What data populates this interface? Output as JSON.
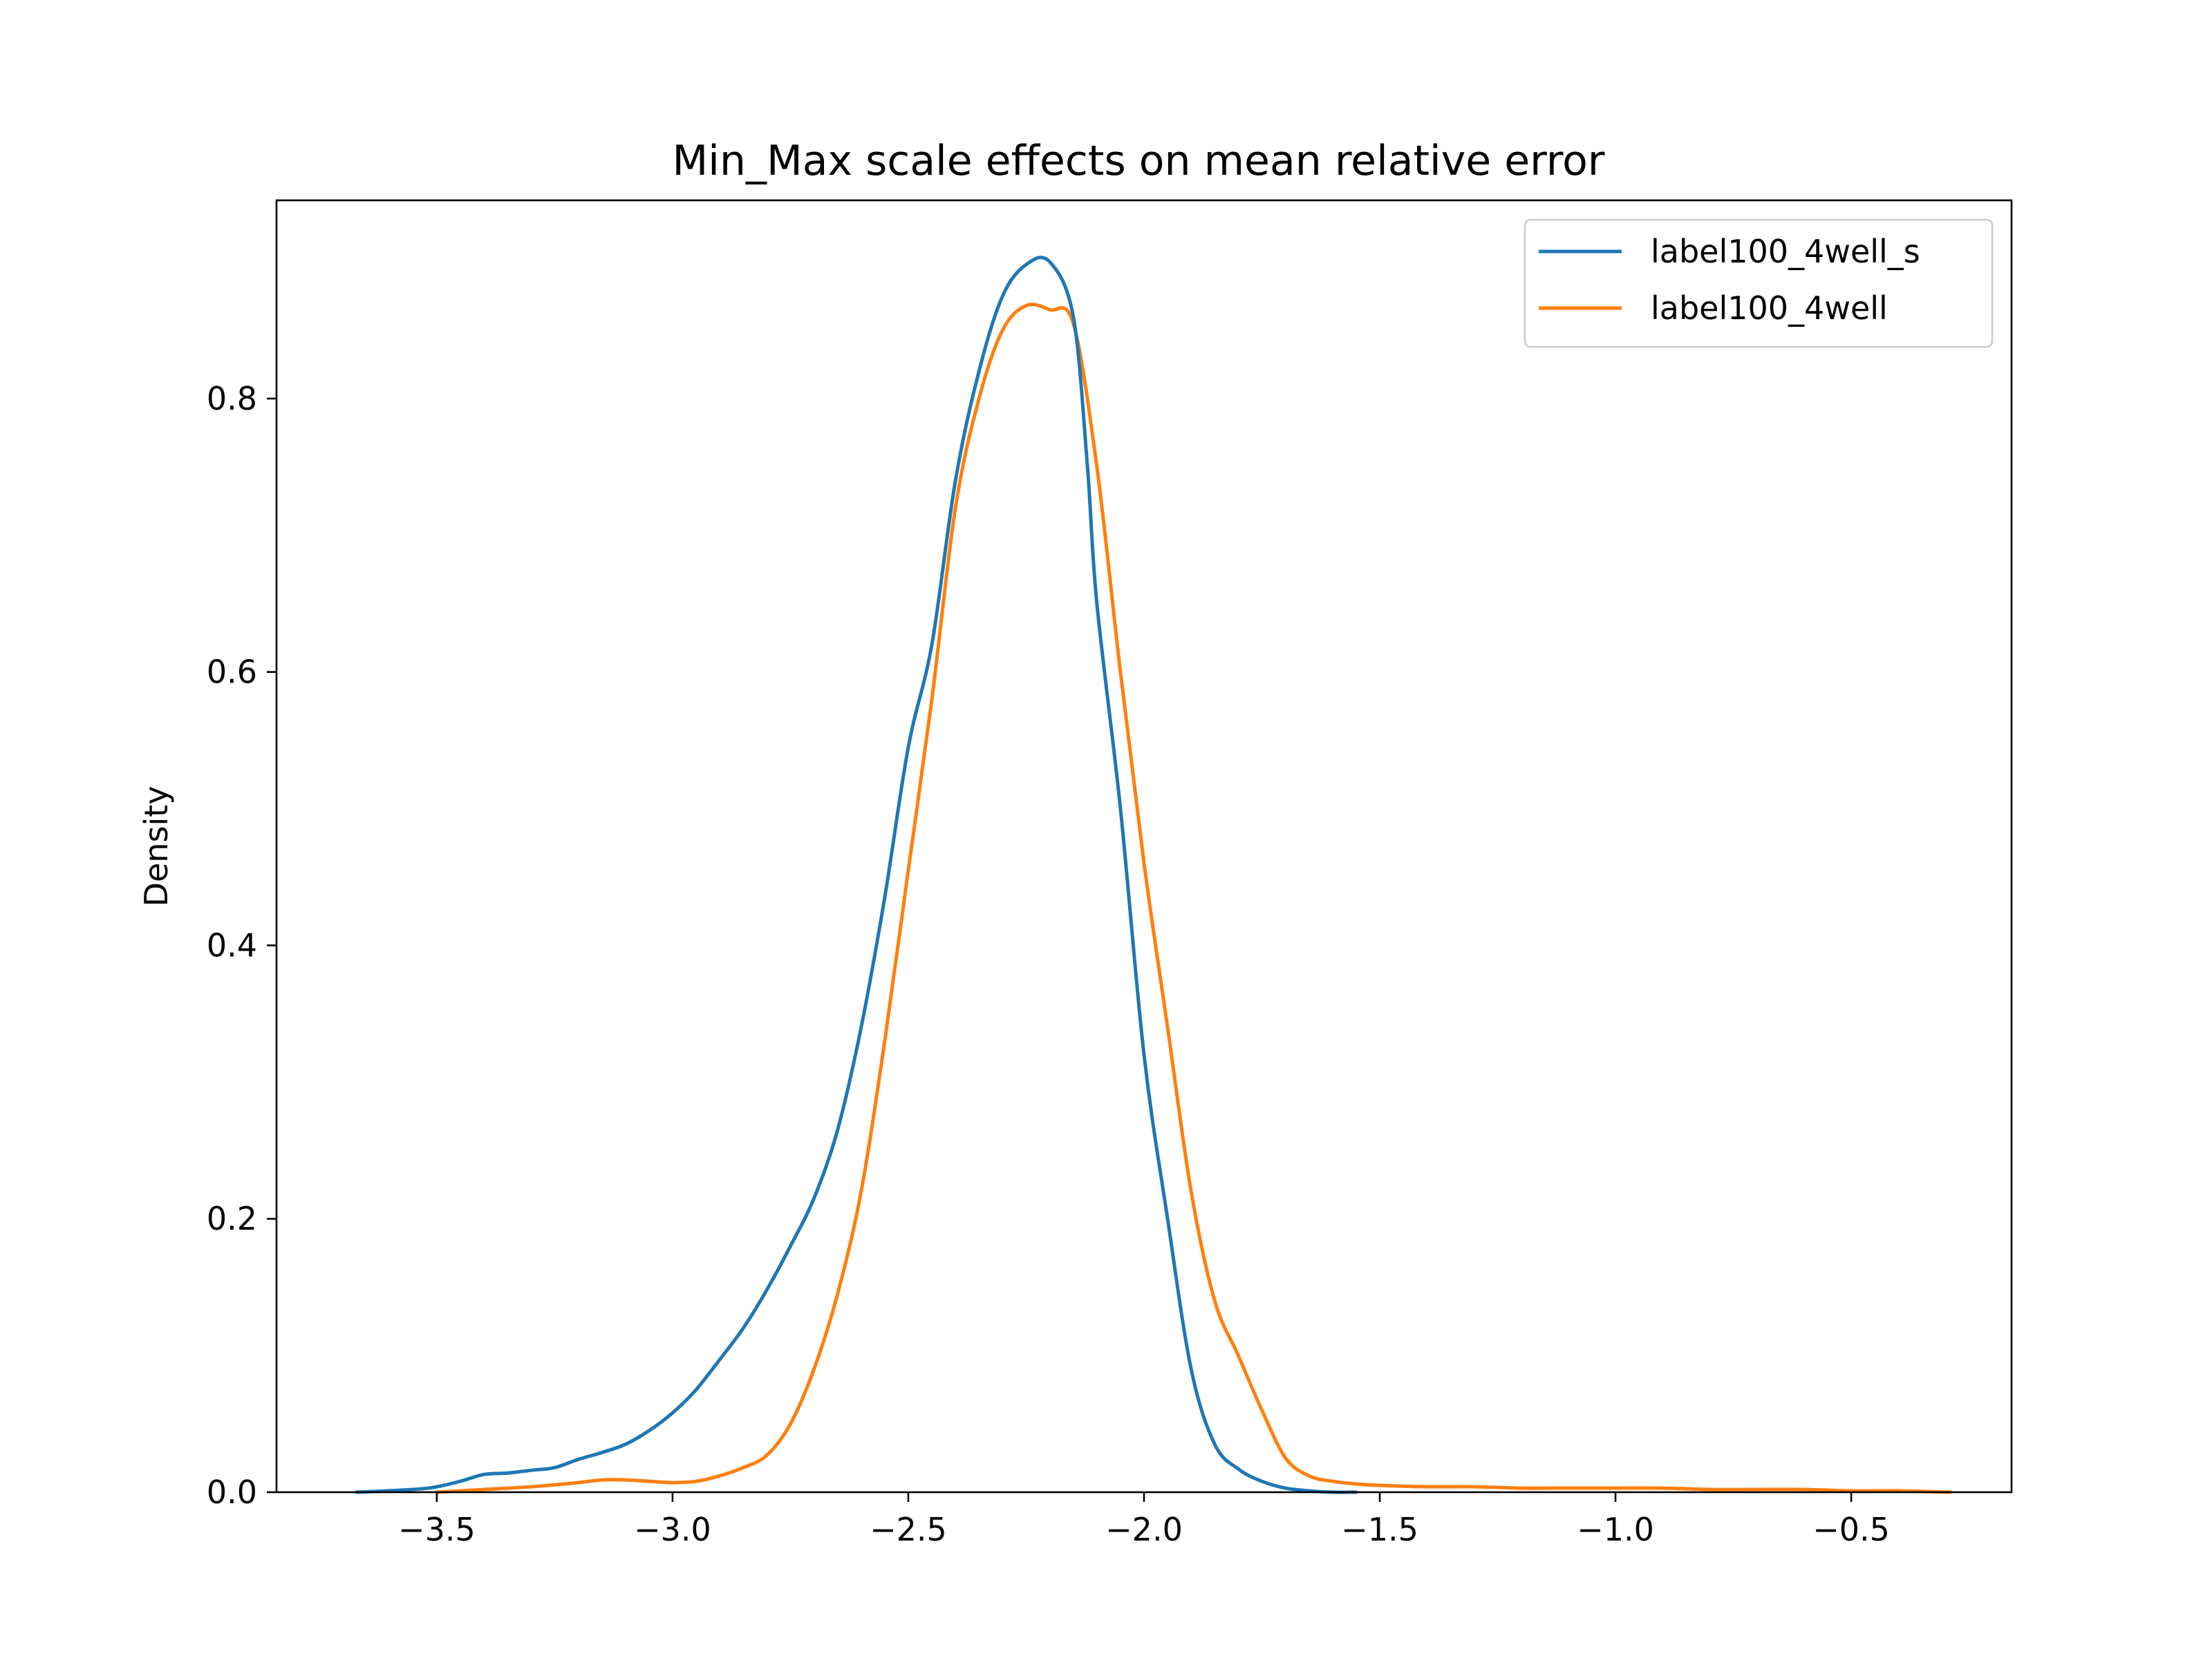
{
  "chart_data": {
    "type": "line",
    "title": "Min_Max scale effects on mean relative error",
    "xlabel": "",
    "ylabel": "Density",
    "xlim": [
      -3.84,
      -0.16
    ],
    "ylim": [
      0,
      0.945
    ],
    "xticks": [
      -3.5,
      -3.0,
      -2.5,
      -2.0,
      -1.5,
      -1.0,
      -0.5
    ],
    "xtick_labels": [
      "−3.5",
      "−3.0",
      "−2.5",
      "−2.0",
      "−1.5",
      "−1.0",
      "−0.5"
    ],
    "yticks": [
      0.0,
      0.2,
      0.4,
      0.6,
      0.8
    ],
    "ytick_labels": [
      "0.0",
      "0.2",
      "0.4",
      "0.6",
      "0.8"
    ],
    "grid": false,
    "legend_position": "top-right",
    "series": [
      {
        "name": "label100_4well_s",
        "color": "#1f77b4",
        "x": [
          -3.67,
          -3.55,
          -3.5,
          -3.45,
          -3.4,
          -3.35,
          -3.3,
          -3.25,
          -3.2,
          -3.15,
          -3.1,
          -3.05,
          -3.0,
          -2.95,
          -2.9,
          -2.85,
          -2.8,
          -2.75,
          -2.7,
          -2.65,
          -2.6,
          -2.55,
          -2.5,
          -2.45,
          -2.4,
          -2.35,
          -2.3,
          -2.25,
          -2.2,
          -2.15,
          -2.12,
          -2.1,
          -2.05,
          -2.0,
          -1.95,
          -1.9,
          -1.85,
          -1.8,
          -1.75,
          -1.7,
          -1.65,
          -1.6,
          -1.55
        ],
        "values": [
          0.0,
          0.002,
          0.004,
          0.008,
          0.013,
          0.014,
          0.016,
          0.018,
          0.024,
          0.029,
          0.035,
          0.045,
          0.058,
          0.075,
          0.097,
          0.12,
          0.148,
          0.18,
          0.215,
          0.265,
          0.34,
          0.435,
          0.545,
          0.62,
          0.74,
          0.82,
          0.875,
          0.898,
          0.9,
          0.86,
          0.75,
          0.65,
          0.5,
          0.32,
          0.2,
          0.09,
          0.035,
          0.017,
          0.008,
          0.003,
          0.001,
          0.0,
          0.0
        ],
        "values_note": ""
      },
      {
        "name": "label100_4well",
        "color": "#ff7f0e",
        "x": [
          -3.5,
          -3.4,
          -3.3,
          -3.2,
          -3.15,
          -3.1,
          -3.05,
          -3.0,
          -2.95,
          -2.9,
          -2.85,
          -2.8,
          -2.75,
          -2.7,
          -2.65,
          -2.6,
          -2.55,
          -2.5,
          -2.45,
          -2.4,
          -2.35,
          -2.3,
          -2.25,
          -2.2,
          -2.15,
          -2.1,
          -2.05,
          -2.0,
          -1.95,
          -1.9,
          -1.85,
          -1.8,
          -1.75,
          -1.7,
          -1.65,
          -1.6,
          -1.55,
          -1.5,
          -1.4,
          -1.3,
          -1.2,
          -1.1,
          -1.0,
          -0.9,
          -0.8,
          -0.7,
          -0.6,
          -0.5,
          -0.4,
          -0.29
        ],
        "values": [
          0.0,
          0.002,
          0.004,
          0.007,
          0.009,
          0.009,
          0.008,
          0.007,
          0.008,
          0.012,
          0.018,
          0.027,
          0.05,
          0.09,
          0.145,
          0.22,
          0.33,
          0.455,
          0.58,
          0.72,
          0.8,
          0.85,
          0.868,
          0.865,
          0.855,
          0.75,
          0.6,
          0.46,
          0.34,
          0.22,
          0.14,
          0.1,
          0.06,
          0.025,
          0.012,
          0.008,
          0.006,
          0.005,
          0.004,
          0.004,
          0.003,
          0.003,
          0.003,
          0.003,
          0.002,
          0.002,
          0.002,
          0.001,
          0.001,
          0.0
        ],
        "values_note": ""
      }
    ]
  }
}
